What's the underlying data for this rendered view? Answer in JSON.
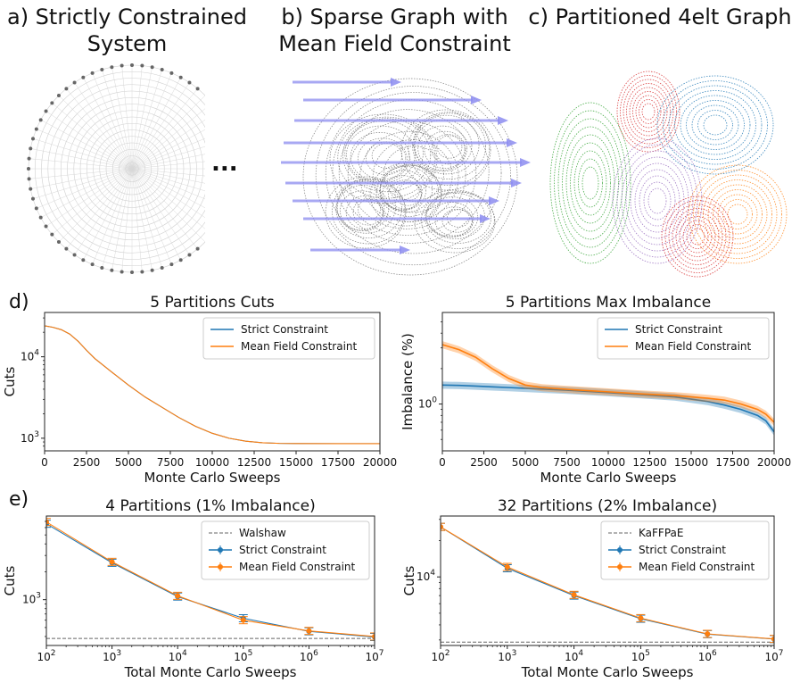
{
  "panels": {
    "a": {
      "title_line1": "a) Strictly Constrained",
      "title_line2": "System",
      "ellipsis": "..."
    },
    "b": {
      "title_line1": "b) Sparse Graph with",
      "title_line2": "Mean Field Constraint"
    },
    "c": {
      "title_line1": "c) Partitioned 4elt Graph"
    },
    "d_label": "d)",
    "e_label": "e)"
  },
  "colors": {
    "strict": "#1f77b4",
    "mean_field": "#ff7f0e",
    "baseline": "#666666",
    "arrow": "#8c8cf0",
    "graph": "#555555",
    "partitions": [
      "#2ca02c",
      "#d62728",
      "#1f77b4",
      "#9467bd",
      "#ff7f0e"
    ]
  },
  "chart_data": [
    {
      "type": "line",
      "title": "5 Partitions Cuts",
      "xlabel": "Monte Carlo Sweeps",
      "ylabel": "Cuts",
      "xlim": [
        0,
        20000
      ],
      "ylim": [
        700,
        35000
      ],
      "yscale": "log",
      "xticks": [
        "0",
        "2500",
        "5000",
        "7500",
        "10000",
        "12500",
        "15000",
        "17500",
        "20000"
      ],
      "xtick_values": [
        0,
        2500,
        5000,
        7500,
        10000,
        12500,
        15000,
        17500,
        20000
      ],
      "yticks": [
        "10^4",
        "10^3"
      ],
      "ytick_values": [
        10000,
        1000
      ],
      "legend": "top-right",
      "x": [
        0,
        500,
        1000,
        1500,
        2000,
        2500,
        3000,
        4000,
        5000,
        6000,
        7000,
        8000,
        9000,
        10000,
        11000,
        12000,
        13000,
        14000,
        15000,
        17500,
        20000
      ],
      "series": [
        {
          "name": "Strict Constraint",
          "values": [
            24000,
            23000,
            21500,
            19000,
            15500,
            12000,
            9500,
            6500,
            4500,
            3200,
            2400,
            1800,
            1400,
            1150,
            1000,
            920,
            880,
            865,
            860,
            858,
            857
          ]
        },
        {
          "name": "Mean Field Constraint",
          "values": [
            24000,
            23000,
            21500,
            19000,
            15500,
            12000,
            9500,
            6500,
            4500,
            3200,
            2400,
            1800,
            1400,
            1150,
            1000,
            920,
            880,
            865,
            860,
            858,
            857
          ]
        }
      ]
    },
    {
      "type": "line",
      "title": "5 Partitions Max Imbalance",
      "xlabel": "Monte Carlo Sweeps",
      "ylabel": "Imbalance (%)",
      "xlim": [
        0,
        20000
      ],
      "ylim": [
        0.4,
        6.0
      ],
      "yscale": "log",
      "xticks": [
        "0",
        "2500",
        "5000",
        "7500",
        "10000",
        "12500",
        "15000",
        "17500",
        "20000"
      ],
      "xtick_values": [
        0,
        2500,
        5000,
        7500,
        10000,
        12500,
        15000,
        17500,
        20000
      ],
      "yticks": [
        "10^0"
      ],
      "ytick_values": [
        1
      ],
      "legend": "top-right",
      "x": [
        0,
        1000,
        2000,
        3000,
        4000,
        5000,
        6000,
        8000,
        10000,
        12000,
        14000,
        15000,
        16000,
        17000,
        18000,
        19000,
        19500,
        20000
      ],
      "series": [
        {
          "name": "Strict Constraint",
          "values": [
            1.45,
            1.44,
            1.42,
            1.4,
            1.38,
            1.36,
            1.34,
            1.3,
            1.25,
            1.2,
            1.15,
            1.1,
            1.05,
            0.98,
            0.9,
            0.8,
            0.72,
            0.58
          ]
        },
        {
          "name": "Mean Field Constraint",
          "values": [
            3.2,
            2.9,
            2.5,
            2.0,
            1.65,
            1.45,
            1.38,
            1.32,
            1.27,
            1.22,
            1.18,
            1.15,
            1.12,
            1.08,
            1.0,
            0.9,
            0.82,
            0.7
          ]
        }
      ]
    },
    {
      "type": "line",
      "title": "4 Partitions (1% Imbalance)",
      "xlabel": "Total Monte Carlo Sweeps",
      "ylabel": "Cuts",
      "xscale": "log",
      "yscale": "log",
      "xlim": [
        100,
        10000000
      ],
      "ylim": [
        320,
        8000
      ],
      "xticks": [
        "10^2",
        "10^3",
        "10^4",
        "10^5",
        "10^6",
        "10^7"
      ],
      "xtick_values": [
        100,
        1000,
        10000,
        100000,
        1000000,
        10000000
      ],
      "yticks": [
        "10^3"
      ],
      "ytick_values": [
        1000
      ],
      "legend": "top-right",
      "x": [
        100,
        1000,
        10000,
        100000,
        1000000,
        10000000
      ],
      "baseline": {
        "name": "Walshaw",
        "value": 381
      },
      "series": [
        {
          "name": "Strict Constraint",
          "values": [
            6600,
            2500,
            1080,
            630,
            455,
            395
          ]
        },
        {
          "name": "Mean Field Constraint",
          "values": [
            6900,
            2560,
            1100,
            600,
            460,
            400
          ]
        }
      ]
    },
    {
      "type": "line",
      "title": "32 Partitions (2% Imbalance)",
      "xlabel": "Total Monte Carlo Sweeps",
      "ylabel": "Cuts",
      "xscale": "log",
      "yscale": "log",
      "xlim": [
        100,
        10000000
      ],
      "ylim": [
        2700,
        32000
      ],
      "xticks": [
        "10^2",
        "10^3",
        "10^4",
        "10^5",
        "10^6",
        "10^7"
      ],
      "xtick_values": [
        100,
        1000,
        10000,
        100000,
        1000000,
        10000000
      ],
      "yticks": [
        "10^4"
      ],
      "ytick_values": [
        10000
      ],
      "legend": "top-right",
      "x": [
        100,
        1000,
        10000,
        100000,
        1000000,
        10000000
      ],
      "baseline": {
        "name": "KaFFPaE",
        "value": 2880
      },
      "series": [
        {
          "name": "Strict Constraint",
          "values": [
            26000,
            11800,
            7000,
            4500,
            3350,
            3050
          ]
        },
        {
          "name": "Mean Field Constraint",
          "values": [
            26000,
            12100,
            7100,
            4550,
            3370,
            3060
          ]
        }
      ]
    }
  ]
}
